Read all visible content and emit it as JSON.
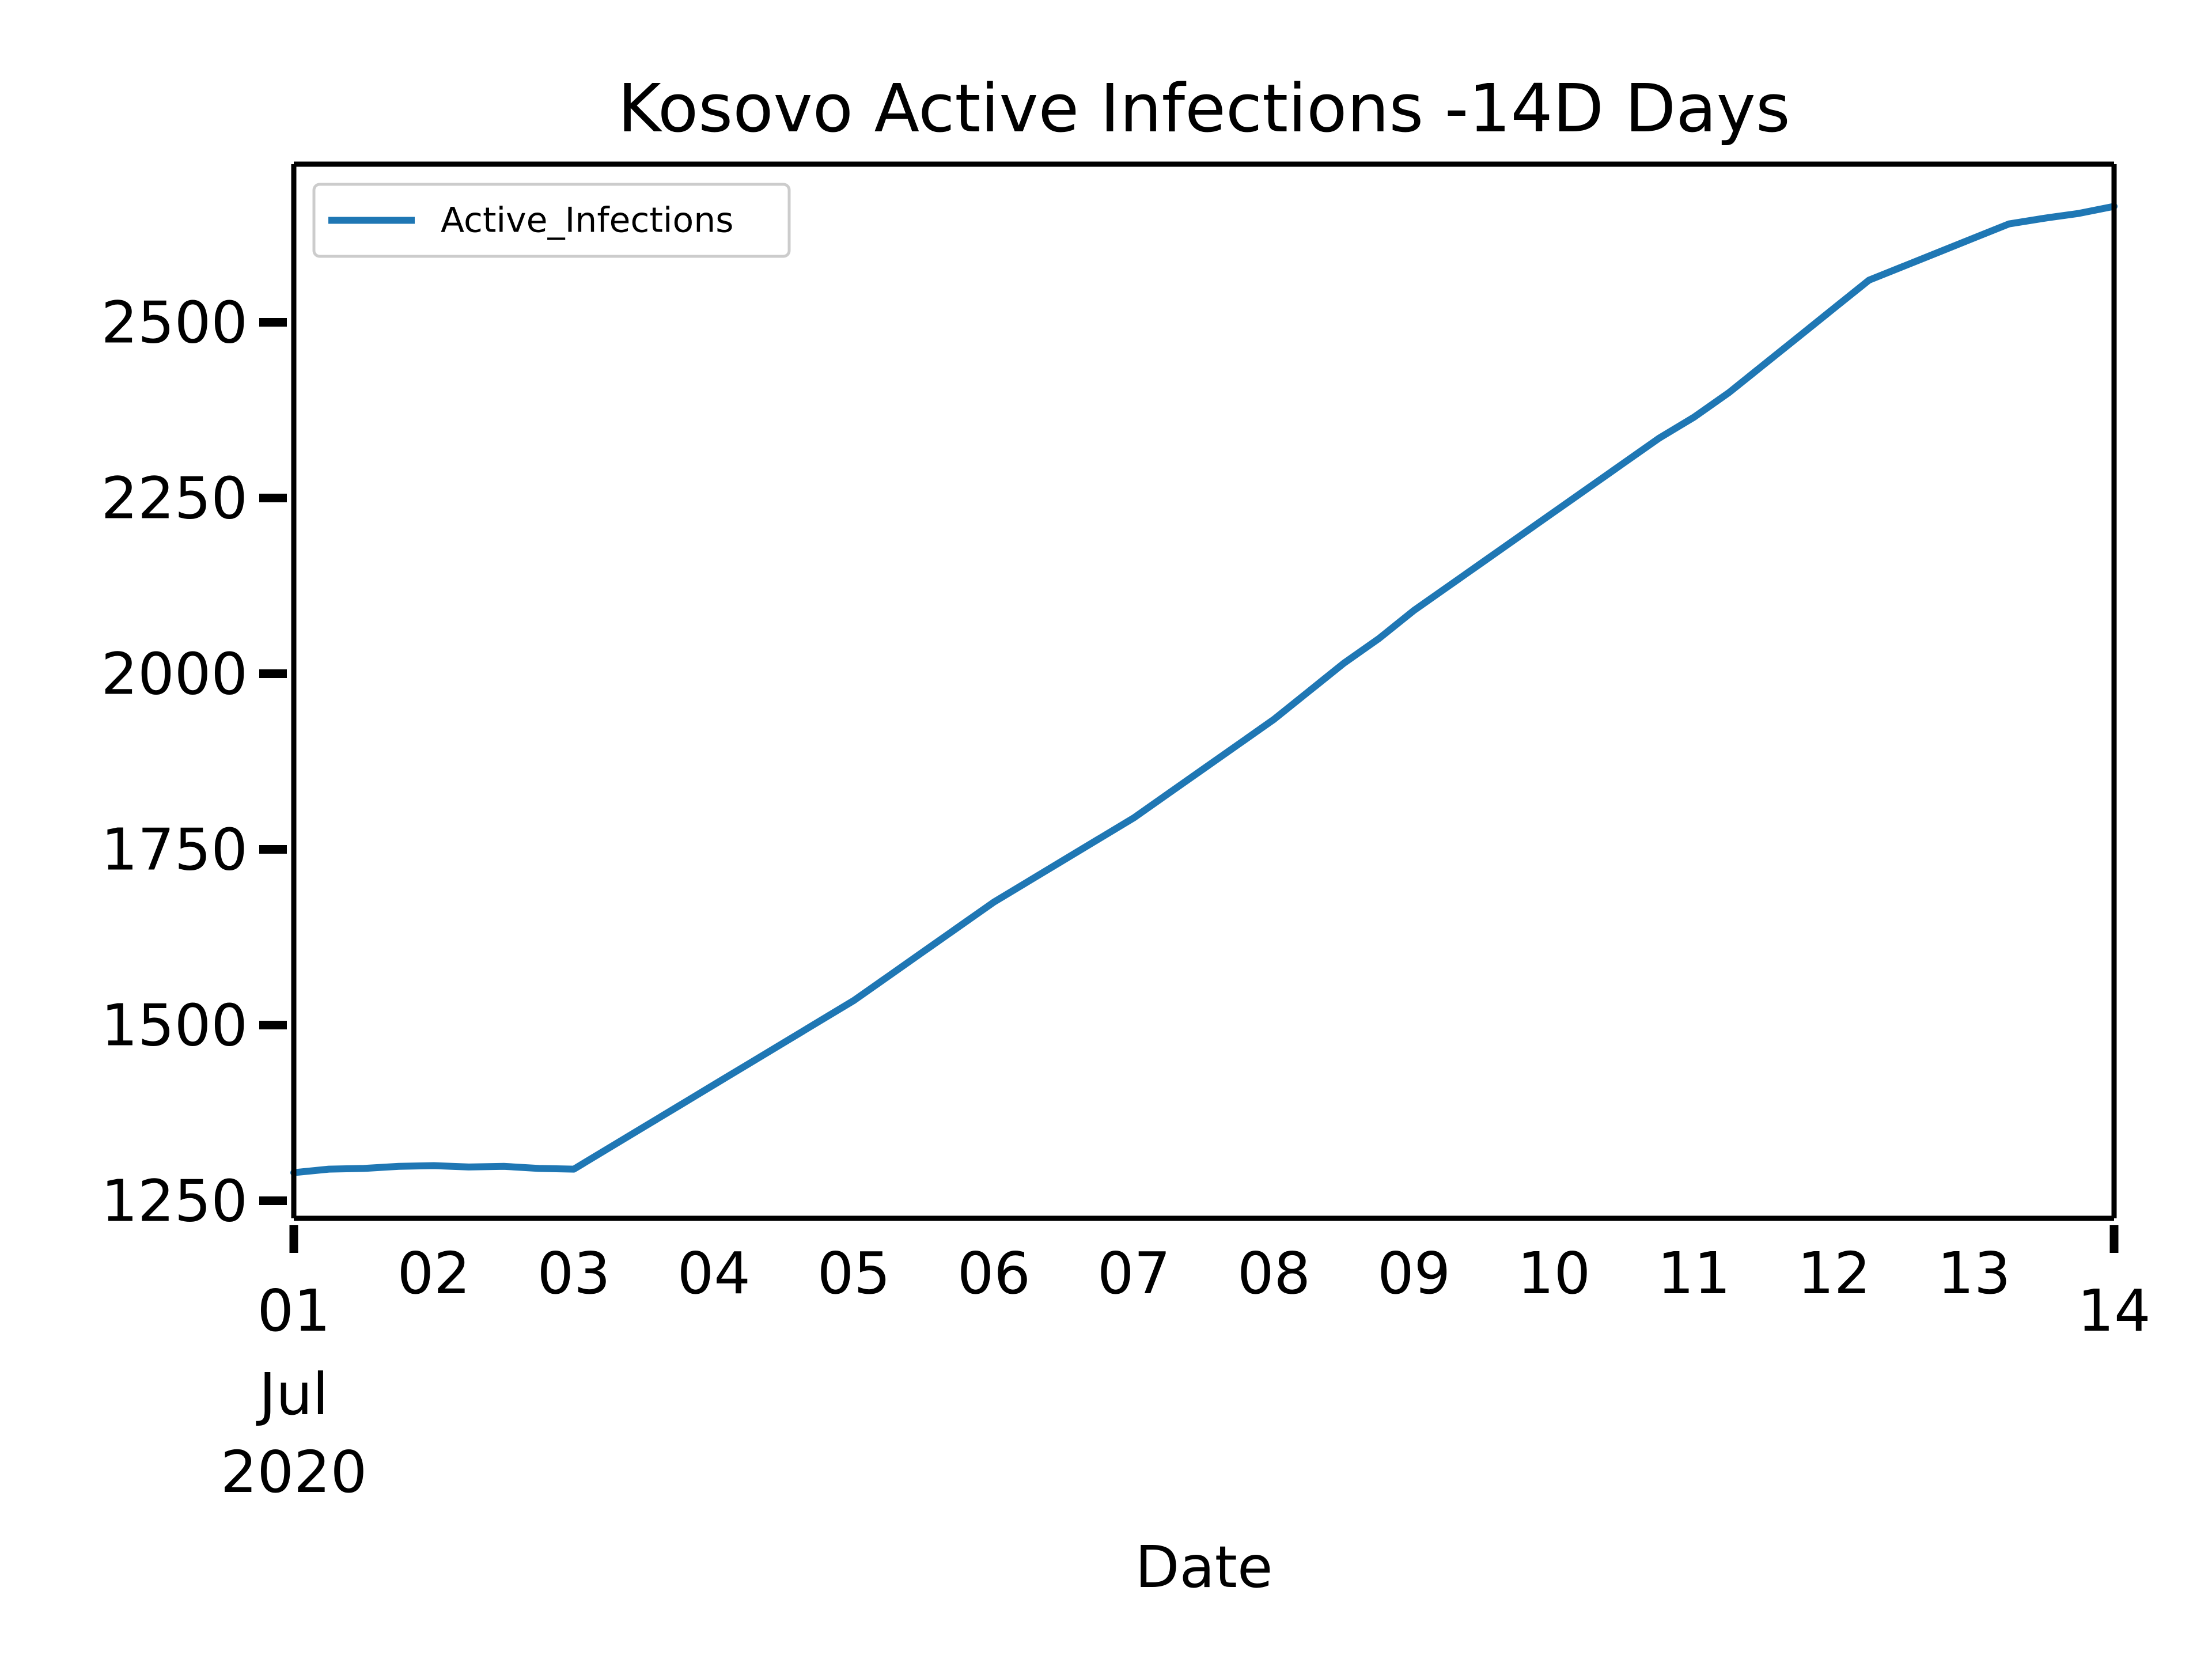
{
  "colors": {
    "background": "#ffffff",
    "axes": "#000000",
    "series": "#1f77b4",
    "legend_border": "#cccccc"
  },
  "chart_data": {
    "type": "line",
    "title": "Kosovo Active Infections -14D Days",
    "xlabel": "Date",
    "ylabel": "",
    "x_tick_labels": [
      "01",
      "02",
      "03",
      "04",
      "05",
      "06",
      "07",
      "08",
      "09",
      "10",
      "11",
      "12",
      "13",
      "14"
    ],
    "x_first_tick_extra": [
      "Jul",
      "2020"
    ],
    "y_ticks": [
      1250,
      1500,
      1750,
      2000,
      2250,
      2500
    ],
    "ylim": [
      1225,
      2725
    ],
    "xlim": [
      "2020-07-01",
      "2020-07-14"
    ],
    "grid": false,
    "legend": {
      "position": "upper left",
      "entries": [
        "Active_Infections"
      ]
    },
    "series": [
      {
        "name": "Active_Infections",
        "x": [
          "2020-07-01",
          "2020-07-01 06:00",
          "2020-07-01 12:00",
          "2020-07-01 18:00",
          "2020-07-02",
          "2020-07-02 06:00",
          "2020-07-02 12:00",
          "2020-07-02 18:00",
          "2020-07-03",
          "2020-07-03 06:00",
          "2020-07-03 12:00",
          "2020-07-03 18:00",
          "2020-07-04",
          "2020-07-04 06:00",
          "2020-07-04 12:00",
          "2020-07-04 18:00",
          "2020-07-05",
          "2020-07-05 06:00",
          "2020-07-05 12:00",
          "2020-07-05 18:00",
          "2020-07-06",
          "2020-07-06 06:00",
          "2020-07-06 12:00",
          "2020-07-06 18:00",
          "2020-07-07",
          "2020-07-07 06:00",
          "2020-07-07 12:00",
          "2020-07-07 18:00",
          "2020-07-08",
          "2020-07-08 06:00",
          "2020-07-08 12:00",
          "2020-07-08 18:00",
          "2020-07-09",
          "2020-07-09 06:00",
          "2020-07-09 12:00",
          "2020-07-09 18:00",
          "2020-07-10",
          "2020-07-10 06:00",
          "2020-07-10 12:00",
          "2020-07-10 18:00",
          "2020-07-11",
          "2020-07-11 06:00",
          "2020-07-11 12:00",
          "2020-07-11 18:00",
          "2020-07-12",
          "2020-07-12 06:00",
          "2020-07-12 12:00",
          "2020-07-12 18:00",
          "2020-07-13",
          "2020-07-13 06:00",
          "2020-07-13 12:00",
          "2020-07-13 18:00",
          "2020-07-14"
        ],
        "values": [
          1290,
          1295,
          1296,
          1299,
          1300,
          1298,
          1299,
          1296,
          1295,
          1325,
          1355,
          1385,
          1415,
          1445,
          1475,
          1505,
          1535,
          1570,
          1605,
          1640,
          1675,
          1705,
          1735,
          1765,
          1795,
          1830,
          1865,
          1900,
          1935,
          1975,
          2015,
          2050,
          2090,
          2125,
          2160,
          2195,
          2230,
          2265,
          2300,
          2335,
          2365,
          2400,
          2440,
          2480,
          2520,
          2560,
          2580,
          2600,
          2620,
          2640,
          2648,
          2655,
          2665
        ]
      }
    ]
  }
}
